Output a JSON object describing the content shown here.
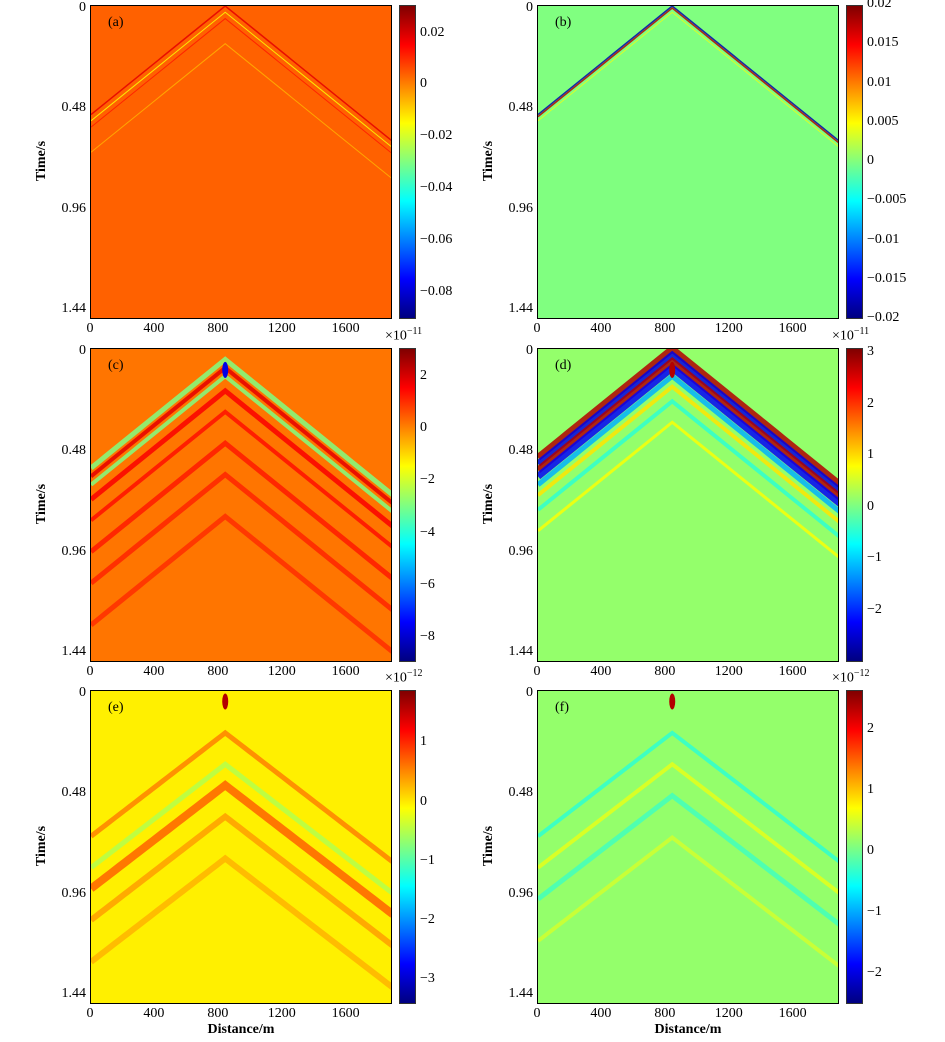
{
  "chart_data": [
    {
      "type": "heatmap",
      "panel_label": "(a)",
      "xlabel": "",
      "ylabel": "Time/s",
      "xlim": [
        0,
        1890
      ],
      "ylim": [
        0,
        1.5
      ],
      "xticks": [
        "0",
        "400",
        "800",
        "1200",
        "1600"
      ],
      "yticks": [
        "0",
        "0.48",
        "0.96",
        "1.44"
      ],
      "colormap": "jet",
      "colorbar": {
        "range": [
          -0.09,
          0.031
        ],
        "ticks": [
          "0.02",
          "0",
          "−0.02",
          "−0.04",
          "−0.06",
          "−0.08"
        ],
        "tick_values": [
          0.02,
          0,
          -0.02,
          -0.04,
          -0.06,
          -0.08
        ],
        "exponent": ""
      }
    },
    {
      "type": "heatmap",
      "panel_label": "(b)",
      "xlabel": "",
      "ylabel": "Time/s",
      "xlim": [
        0,
        1890
      ],
      "ylim": [
        0,
        1.5
      ],
      "xticks": [
        "0",
        "400",
        "800",
        "1200",
        "1600"
      ],
      "yticks": [
        "0",
        "0.48",
        "0.96",
        "1.44"
      ],
      "colormap": "jet",
      "colorbar": {
        "range": [
          -0.02,
          0.02
        ],
        "ticks": [
          "0.02",
          "0.015",
          "0.01",
          "0.005",
          "0",
          "−0.005",
          "−0.01",
          "−0.015",
          "−0.02"
        ],
        "tick_values": [
          0.02,
          0.015,
          0.01,
          0.005,
          0,
          -0.005,
          -0.01,
          -0.015,
          -0.02
        ],
        "exponent": ""
      }
    },
    {
      "type": "heatmap",
      "panel_label": "(c)",
      "xlabel": "",
      "ylabel": "Time/s",
      "xlim": [
        0,
        1890
      ],
      "ylim": [
        0,
        1.5
      ],
      "xticks": [
        "0",
        "400",
        "800",
        "1200",
        "1600"
      ],
      "yticks": [
        "0",
        "0.48",
        "0.96",
        "1.44"
      ],
      "colormap": "jet",
      "colorbar": {
        "range": [
          -8.9,
          3.1
        ],
        "ticks": [
          "2",
          "0",
          "−2",
          "−4",
          "−6",
          "−8"
        ],
        "tick_values": [
          2,
          0,
          -2,
          -4,
          -6,
          -8
        ],
        "exponent": "−11"
      }
    },
    {
      "type": "heatmap",
      "panel_label": "(d)",
      "xlabel": "",
      "ylabel": "Time/s",
      "xlim": [
        0,
        1890
      ],
      "ylim": [
        0,
        1.5
      ],
      "xticks": [
        "0",
        "400",
        "800",
        "1200",
        "1600"
      ],
      "yticks": [
        "0",
        "0.48",
        "0.96",
        "1.44"
      ],
      "colormap": "jet",
      "colorbar": {
        "range": [
          -3,
          3.1
        ],
        "ticks": [
          "3",
          "2",
          "1",
          "0",
          "−1",
          "−2"
        ],
        "tick_values": [
          3,
          2,
          1,
          0,
          -1,
          -2
        ],
        "exponent": "−11"
      }
    },
    {
      "type": "heatmap",
      "panel_label": "(e)",
      "xlabel": "Distance/m",
      "ylabel": "Time/s",
      "xlim": [
        0,
        1890
      ],
      "ylim": [
        0,
        1.5
      ],
      "xticks": [
        "0",
        "400",
        "800",
        "1200",
        "1600"
      ],
      "yticks": [
        "0",
        "0.48",
        "0.96",
        "1.44"
      ],
      "colormap": "jet",
      "colorbar": {
        "range": [
          -3.4,
          1.9
        ],
        "ticks": [
          "1",
          "0",
          "−1",
          "−2",
          "−3"
        ],
        "tick_values": [
          1,
          0,
          -1,
          -2,
          -3
        ],
        "exponent": "−12"
      }
    },
    {
      "type": "heatmap",
      "panel_label": "(f)",
      "xlabel": "Distance/m",
      "ylabel": "Time/s",
      "xlim": [
        0,
        1890
      ],
      "ylim": [
        0,
        1.5
      ],
      "xticks": [
        "0",
        "400",
        "800",
        "1200",
        "1600"
      ],
      "yticks": [
        "0",
        "0.48",
        "0.96",
        "1.44"
      ],
      "colormap": "jet",
      "colorbar": {
        "range": [
          -2.5,
          2.65
        ],
        "ticks": [
          "2",
          "1",
          "0",
          "−1",
          "−2"
        ],
        "tick_values": [
          2,
          1,
          0,
          -1,
          -2
        ],
        "exponent": "−12"
      }
    }
  ]
}
